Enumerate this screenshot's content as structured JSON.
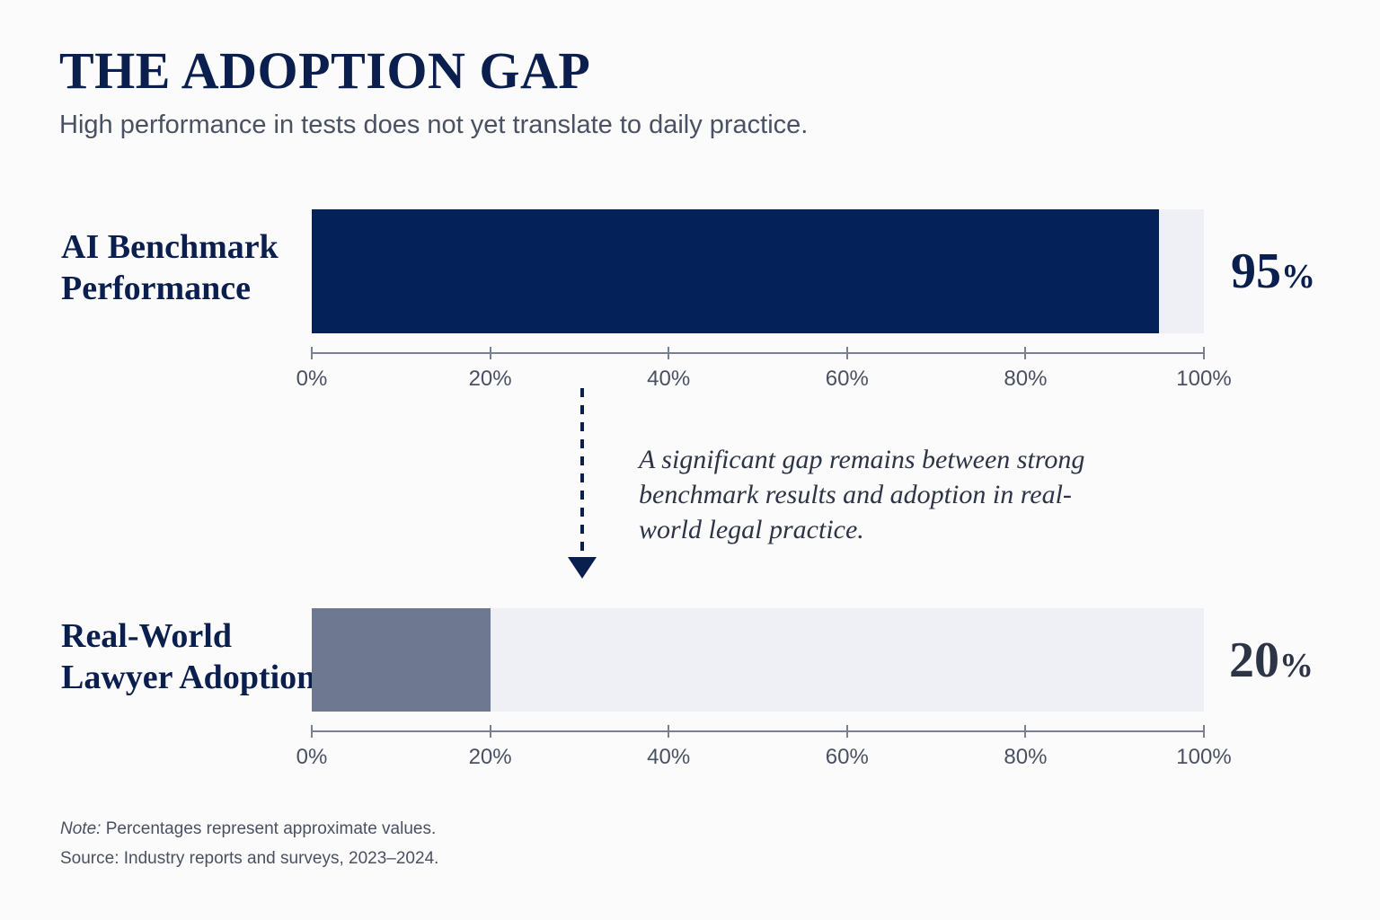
{
  "header": {
    "title": "THE ADOPTION GAP",
    "subtitle": "High performance in tests does not yet translate to daily practice."
  },
  "chart_data": [
    {
      "type": "bar",
      "orientation": "horizontal",
      "categories": [
        "AI Benchmark\nPerformance"
      ],
      "values": [
        95
      ],
      "value_label": "95",
      "value_suffix": "%",
      "xlim": [
        0,
        100
      ],
      "ticks": [
        "0%",
        "20%",
        "40%",
        "60%",
        "80%",
        "100%"
      ],
      "tick_values": [
        0,
        20,
        40,
        60,
        80,
        100
      ],
      "bar_color": "#05215a",
      "track_color": "#eff0f5"
    },
    {
      "type": "bar",
      "orientation": "horizontal",
      "categories": [
        "Real-World\nLawyer Adoption"
      ],
      "values": [
        20
      ],
      "value_label": "20",
      "value_suffix": "%",
      "xlim": [
        0,
        100
      ],
      "ticks": [
        "0%",
        "20%",
        "40%",
        "60%",
        "80%",
        "100%"
      ],
      "tick_values": [
        0,
        20,
        40,
        60,
        80,
        100
      ],
      "bar_color": "#6e7890",
      "track_color": "#eff0f5"
    }
  ],
  "annotation": "A significant gap remains between strong benchmark results and adoption in real-world legal practice.",
  "footer": {
    "note_prefix": "Note:",
    "note_text": " Percentages represent approximate values.",
    "source": "Source: Industry reports and surveys, 2023–2024."
  },
  "colors": {
    "primary": "#0b1f4f",
    "text_muted": "#4a5162"
  }
}
